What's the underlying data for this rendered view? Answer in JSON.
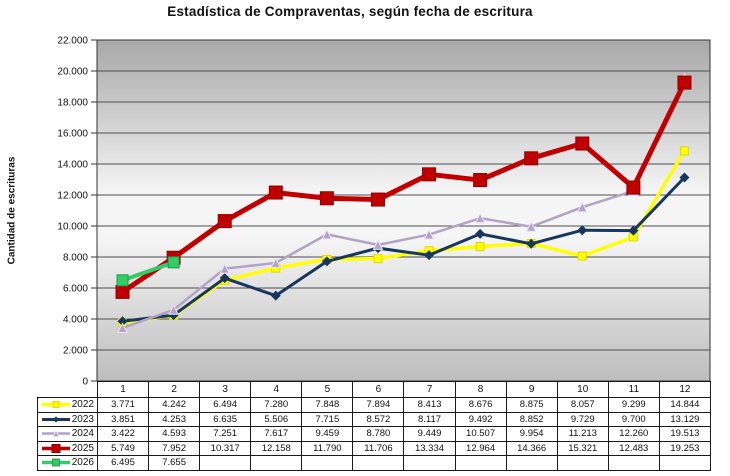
{
  "chart_data": {
    "type": "line",
    "title": "Estadística de Compraventas, según fecha de escritura",
    "ylabel": "Cantidad de escrituras",
    "xlabel": "",
    "categories": [
      "1",
      "2",
      "3",
      "4",
      "5",
      "6",
      "7",
      "8",
      "9",
      "10",
      "11",
      "12"
    ],
    "ylim": [
      0,
      22000
    ],
    "ytick_step": 2000,
    "grid": "horizontal",
    "gridline_color": "#4f4f4f",
    "plot_border_color": "#333333",
    "plot_bg": {
      "top": "#a8a8a8",
      "mid": "#f5f5f5",
      "bottom": "#bdbdbd"
    },
    "legend_position": "data-table-left",
    "number_format": "thousands-dot",
    "series": [
      {
        "name": "2022",
        "color": "#ffff00",
        "marker": "square",
        "marker_stroke": "#e3d800",
        "line_width": 3.5,
        "marker_size": 8,
        "values": [
          3771,
          4242,
          6494,
          7280,
          7848,
          7894,
          8413,
          8676,
          8875,
          8057,
          9299,
          14844
        ]
      },
      {
        "name": "2023",
        "color": "#17375e",
        "marker": "diamond",
        "marker_stroke": null,
        "line_width": 3,
        "marker_size": 10,
        "values": [
          3851,
          4253,
          6635,
          5506,
          7715,
          8572,
          8117,
          9492,
          8852,
          9729,
          9700,
          13129
        ]
      },
      {
        "name": "2024",
        "color": "#b3a2c7",
        "marker": "triangle",
        "marker_stroke": "#e9e4f2",
        "line_width": 2.5,
        "marker_size": 9,
        "values": [
          3422,
          4593,
          7251,
          7617,
          9459,
          8780,
          9449,
          10507,
          9954,
          11213,
          12260,
          19513
        ]
      },
      {
        "name": "2025",
        "color": "#c00000",
        "marker": "square",
        "marker_stroke": "#8f0000",
        "line_width": 5,
        "marker_size": 13,
        "values": [
          5749,
          7952,
          10317,
          12158,
          11790,
          11706,
          13334,
          12964,
          14366,
          15321,
          12483,
          19253
        ]
      },
      {
        "name": "2026",
        "color": "#33cc66",
        "marker": "square",
        "marker_stroke": "#169c4d",
        "line_width": 4,
        "marker_size": 11,
        "values": [
          6495,
          7655
        ]
      }
    ]
  }
}
